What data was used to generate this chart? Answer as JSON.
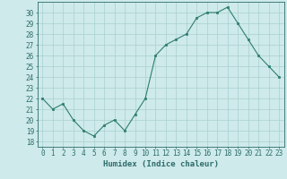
{
  "x": [
    0,
    1,
    2,
    3,
    4,
    5,
    6,
    7,
    8,
    9,
    10,
    11,
    12,
    13,
    14,
    15,
    16,
    17,
    18,
    19,
    20,
    21,
    22,
    23
  ],
  "y": [
    22,
    21,
    21.5,
    20,
    19,
    18.5,
    19.5,
    20,
    19,
    20.5,
    22,
    26,
    27,
    27.5,
    28,
    29.5,
    30,
    30,
    30.5,
    29,
    27.5,
    26,
    25,
    24
  ],
  "line_color": "#2e7d6e",
  "marker_color": "#2e7d6e",
  "bg_color": "#ceeaea",
  "grid_color": "#aacfcf",
  "xlabel": "Humidex (Indice chaleur)",
  "ylim": [
    17.5,
    31
  ],
  "xlim": [
    -0.5,
    23.5
  ],
  "yticks": [
    18,
    19,
    20,
    21,
    22,
    23,
    24,
    25,
    26,
    27,
    28,
    29,
    30
  ],
  "xticks": [
    0,
    1,
    2,
    3,
    4,
    5,
    6,
    7,
    8,
    9,
    10,
    11,
    12,
    13,
    14,
    15,
    16,
    17,
    18,
    19,
    20,
    21,
    22,
    23
  ],
  "font_color": "#2e6b6b",
  "label_fontsize": 6.5,
  "tick_fontsize": 5.5
}
